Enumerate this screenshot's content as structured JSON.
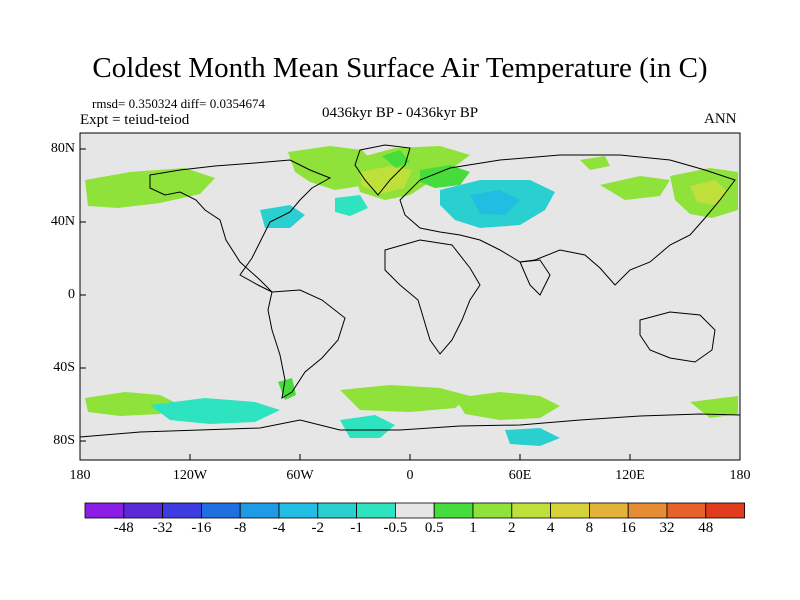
{
  "title": "Coldest Month Mean Surface Air Temperature (in C)",
  "stats": "rmsd= 0.350324 diff= 0.0354674",
  "experiment": "Expt = teiud-teiod",
  "period": "0436kyr BP - 0436kyr BP",
  "season": "ANN",
  "lat_labels": [
    "80N",
    "40N",
    "0",
    "40S",
    "80S"
  ],
  "lon_labels": [
    "180",
    "120W",
    "60W",
    "0",
    "60E",
    "120E",
    "180"
  ],
  "colorbar": {
    "labels": [
      "-48",
      "-32",
      "-16",
      "-8",
      "-4",
      "-2",
      "-1",
      "-0.5",
      "0.5",
      "1",
      "2",
      "4",
      "8",
      "16",
      "32",
      "48"
    ],
    "colors": [
      "#8a1ee6",
      "#5a2ad9",
      "#3c3ce0",
      "#1f6fe0",
      "#1e9ae6",
      "#22bde2",
      "#2ad0cf",
      "#2ee3c0",
      "#e6e6e6",
      "#46dd3c",
      "#8fe23a",
      "#bfe03a",
      "#d8d23a",
      "#e2b23a",
      "#e68c32",
      "#e6622a",
      "#e23c1e"
    ]
  },
  "colors": {
    "background_field": "#e6e6e6",
    "coastline": "#000000"
  }
}
